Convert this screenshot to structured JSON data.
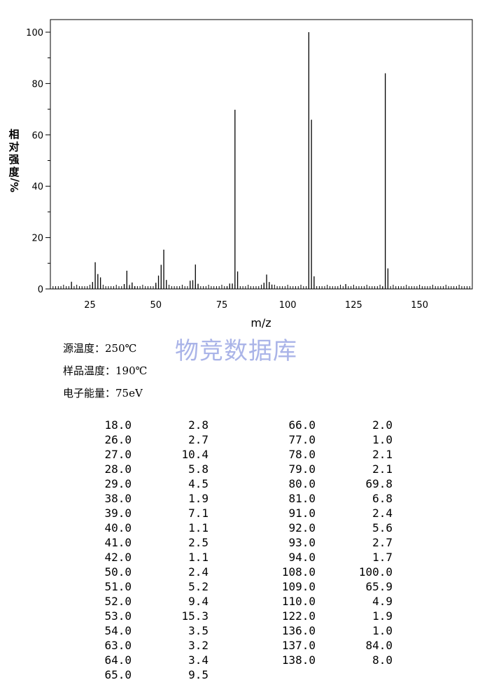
{
  "chart_data": {
    "type": "bar",
    "xlabel": "m/z",
    "ylabel_chars": [
      "相",
      "对",
      "强",
      "度",
      "%/"
    ],
    "xlim": [
      10,
      170
    ],
    "ylim": [
      0,
      100
    ],
    "xticks": [
      25,
      50,
      75,
      100,
      125,
      150
    ],
    "yticks": [
      0,
      20,
      40,
      60,
      80,
      100
    ],
    "x": [
      18,
      26,
      27,
      28,
      29,
      38,
      39,
      40,
      41,
      42,
      50,
      51,
      52,
      53,
      54,
      63,
      64,
      65,
      66,
      77,
      78,
      79,
      80,
      81,
      91,
      92,
      93,
      94,
      108,
      109,
      110,
      122,
      136,
      137,
      138
    ],
    "values": [
      2.8,
      2.7,
      10.4,
      5.8,
      4.5,
      1.9,
      7.1,
      1.1,
      2.5,
      1.1,
      2.4,
      5.2,
      9.4,
      15.3,
      3.5,
      3.2,
      3.4,
      9.5,
      2.0,
      1.0,
      2.1,
      2.1,
      69.8,
      6.8,
      2.4,
      5.6,
      2.7,
      1.7,
      100.0,
      65.9,
      4.9,
      1.9,
      1.0,
      84.0,
      8.0
    ]
  },
  "watermark": "物竞数据库",
  "conditions": [
    "源温度：250℃",
    "样品温度：190℃",
    "电子能量：75eV"
  ],
  "peak_table": {
    "left": [
      [
        "18.0",
        "2.8"
      ],
      [
        "26.0",
        "2.7"
      ],
      [
        "27.0",
        "10.4"
      ],
      [
        "28.0",
        "5.8"
      ],
      [
        "29.0",
        "4.5"
      ],
      [
        "38.0",
        "1.9"
      ],
      [
        "39.0",
        "7.1"
      ],
      [
        "40.0",
        "1.1"
      ],
      [
        "41.0",
        "2.5"
      ],
      [
        "42.0",
        "1.1"
      ],
      [
        "50.0",
        "2.4"
      ],
      [
        "51.0",
        "5.2"
      ],
      [
        "52.0",
        "9.4"
      ],
      [
        "53.0",
        "15.3"
      ],
      [
        "54.0",
        "3.5"
      ],
      [
        "63.0",
        "3.2"
      ],
      [
        "64.0",
        "3.4"
      ],
      [
        "65.0",
        "9.5"
      ]
    ],
    "right": [
      [
        "66.0",
        "2.0"
      ],
      [
        "77.0",
        "1.0"
      ],
      [
        "78.0",
        "2.1"
      ],
      [
        "79.0",
        "2.1"
      ],
      [
        "80.0",
        "69.8"
      ],
      [
        "81.0",
        "6.8"
      ],
      [
        "91.0",
        "2.4"
      ],
      [
        "92.0",
        "5.6"
      ],
      [
        "93.0",
        "2.7"
      ],
      [
        "94.0",
        "1.7"
      ],
      [
        "108.0",
        "100.0"
      ],
      [
        "109.0",
        "65.9"
      ],
      [
        "110.0",
        "4.9"
      ],
      [
        "122.0",
        "1.9"
      ],
      [
        "136.0",
        "1.0"
      ],
      [
        "137.0",
        "84.0"
      ],
      [
        "138.0",
        "8.0"
      ]
    ]
  }
}
